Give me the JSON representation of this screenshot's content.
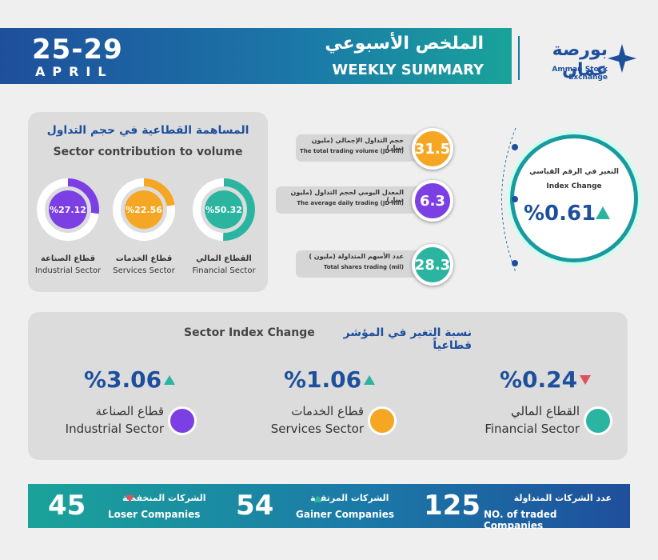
{
  "header": {
    "date": "25-29",
    "month": "APRIL",
    "title_ar": "الملخص الأسبوعي",
    "title_en": "WEEKLY SUMMARY",
    "logo_ar": "بورصة عمان",
    "logo_en": "Amman Stock Exchange"
  },
  "volume_contribution": {
    "title_ar": "المساهمة القطاعية في حجم التداول",
    "title_en": "Sector contribution to volume",
    "sectors": [
      {
        "share": {
          "value": 50.32,
          "label": "%50.32"
        },
        "name_ar": "القطاع المالي",
        "name_en": "Financial Sector",
        "color": "#2bb5a0"
      },
      {
        "share": {
          "value": 22.56,
          "label": "%22.56"
        },
        "name_ar": "قطاع الخدمات",
        "name_en": "Services Sector",
        "color": "#f5a623"
      },
      {
        "share": {
          "value": 27.12,
          "label": "%27.12"
        },
        "name_ar": "قطاع الصناعة",
        "name_en": "Industrial Sector",
        "color": "#7b3fe4"
      }
    ]
  },
  "indicators": [
    {
      "label_ar": "حجم التداول الإجمالي (مليون دينار)",
      "label_en": "The total trading volume (JD mil)",
      "value": "31.5",
      "color": "#f5a623"
    },
    {
      "label_ar": "المعدل اليومي لحجم التداول (مليون دينار)",
      "label_en": "The average daily trading (JD mil)",
      "value": "6.3",
      "color": "#7b3fe4"
    },
    {
      "label_ar": "عدد الأسهم المتداولة (مليون )",
      "label_en": "Total shares trading (mil)",
      "value": "28.3",
      "color": "#2bb5a0"
    }
  ],
  "index_change": {
    "label_ar": "التغير في الرقم القياسي",
    "label_en": "Index Change",
    "value": "%0.61",
    "direction": "up"
  },
  "sector_index": {
    "title_en": "Sector Index Change",
    "title_ar": "نسبة التغير في المؤشر قطاعياً",
    "sectors": [
      {
        "value": "%0.24",
        "direction": "down",
        "name_ar": "القطاع المالي",
        "name_en": "Financial Sector",
        "color": "#2bb5a0"
      },
      {
        "value": "%1.06",
        "direction": "up",
        "name_ar": "قطاع الخدمات",
        "name_en": "Services Sector",
        "color": "#f5a623"
      },
      {
        "value": "%3.06",
        "direction": "up",
        "name_ar": "قطاع الصناعة",
        "name_en": "Industrial Sector",
        "color": "#7b3fe4"
      }
    ]
  },
  "companies": [
    {
      "value": "125",
      "label_ar": "عدد الشركات المتداولة",
      "label_en": "NO. of traded Companies"
    },
    {
      "value": "54",
      "label_ar": "الشركات المرتفعة",
      "label_en": "Gainer Companies",
      "direction": "up"
    },
    {
      "value": "45",
      "label_ar": "الشركات المنخفضة",
      "label_en": "Loser Companies",
      "direction": "down"
    }
  ]
}
